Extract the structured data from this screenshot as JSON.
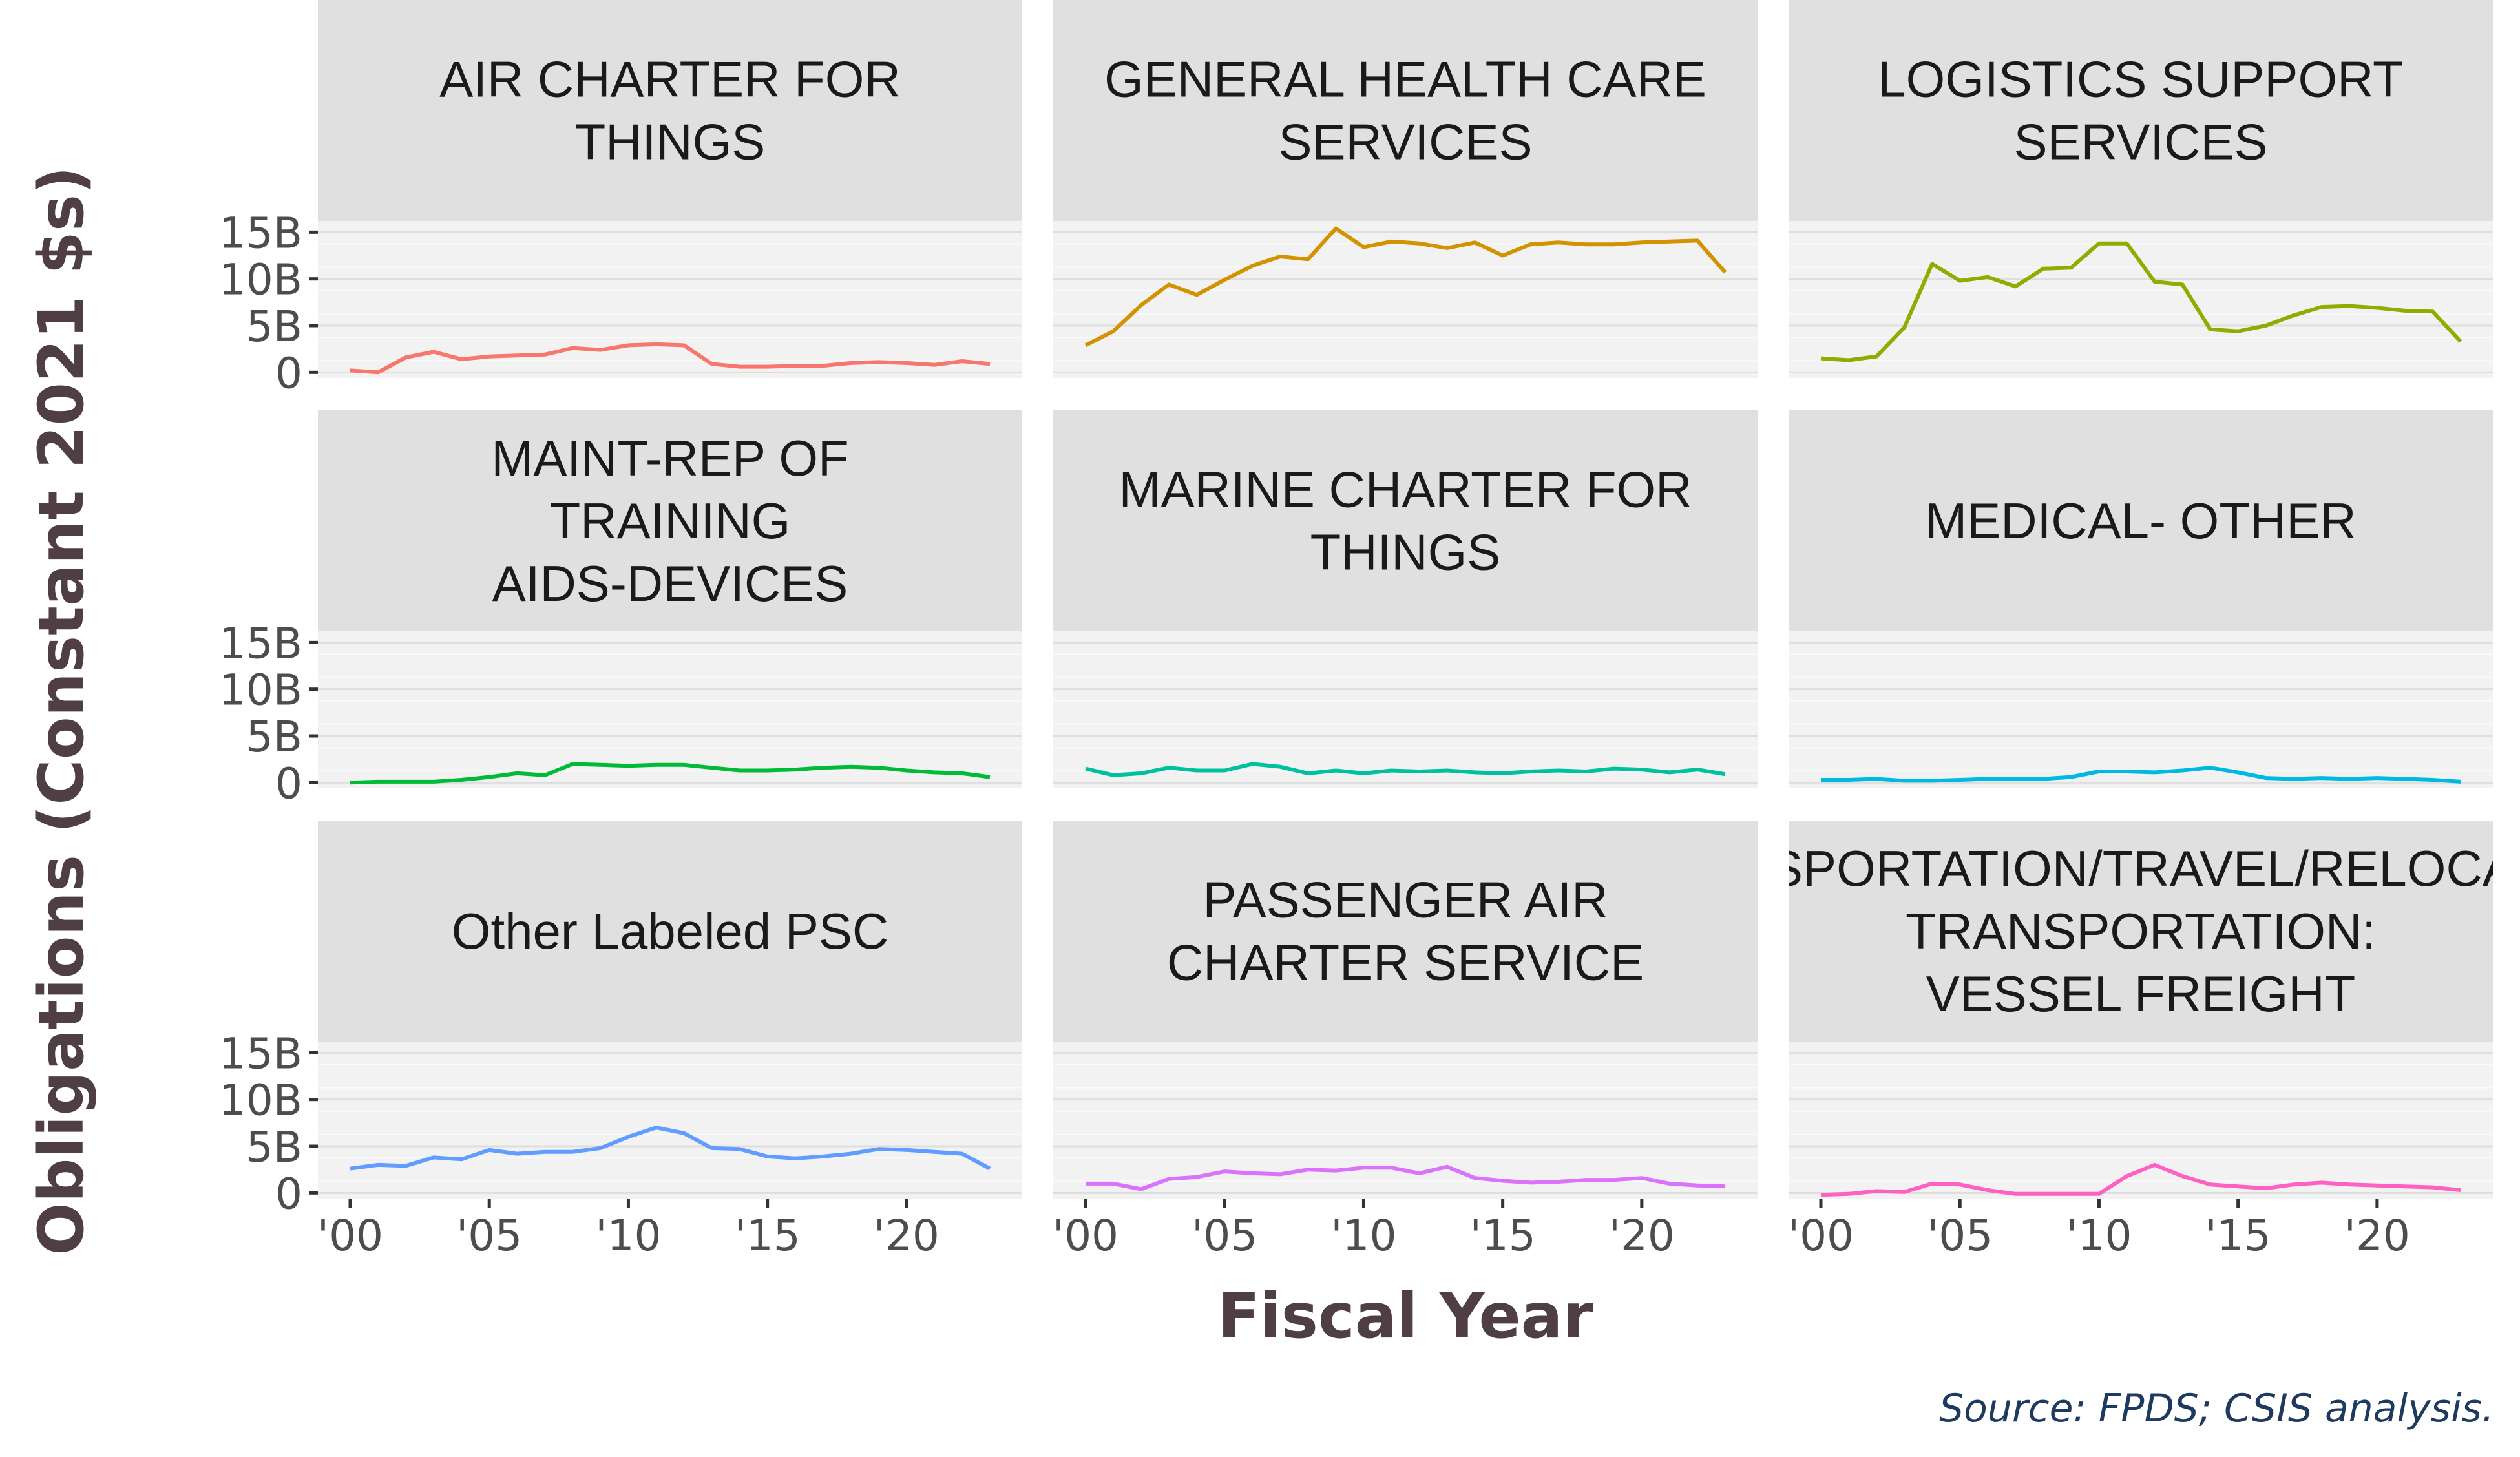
{
  "chart_data": {
    "type": "line",
    "facet_layout": "3x3 grid, shared axes",
    "ylabel": "Obligations (Constant 2021 $s)",
    "xlabel": "Fiscal Year",
    "caption": "Source: FPDS; CSIS analysis.",
    "y_ticks": [
      {
        "value": 0,
        "label": "0"
      },
      {
        "value": 5,
        "label": "5B"
      },
      {
        "value": 10,
        "label": "10B"
      },
      {
        "value": 15,
        "label": "15B"
      }
    ],
    "x_ticks": [
      {
        "value": 2000,
        "label": "'00"
      },
      {
        "value": 2005,
        "label": "'05"
      },
      {
        "value": 2010,
        "label": "'10"
      },
      {
        "value": 2015,
        "label": "'15"
      },
      {
        "value": 2020,
        "label": "'20"
      }
    ],
    "xlim": [
      2000,
      2023
    ],
    "ylim": [
      0,
      15
    ],
    "x": [
      2000,
      2001,
      2002,
      2003,
      2004,
      2005,
      2006,
      2007,
      2008,
      2009,
      2010,
      2011,
      2012,
      2013,
      2014,
      2015,
      2016,
      2017,
      2018,
      2019,
      2020,
      2021,
      2022,
      2023
    ],
    "series": [
      {
        "name": "AIR CHARTER FOR THINGS",
        "strip_lines": [
          "AIR CHARTER FOR",
          "THINGS"
        ],
        "color": "#F8766D",
        "values": [
          0.2,
          0.0,
          1.6,
          2.2,
          1.4,
          1.7,
          1.8,
          1.9,
          2.6,
          2.4,
          2.9,
          3.0,
          2.9,
          0.9,
          0.6,
          0.6,
          0.7,
          0.7,
          1.0,
          1.1,
          1.0,
          0.8,
          1.2,
          0.9
        ]
      },
      {
        "name": "GENERAL HEALTH CARE SERVICES",
        "strip_lines": [
          "GENERAL HEALTH CARE",
          "SERVICES"
        ],
        "color": "#D39200",
        "values": [
          2.9,
          4.4,
          7.2,
          9.4,
          8.3,
          9.9,
          11.4,
          12.4,
          12.1,
          15.4,
          13.4,
          14.0,
          13.8,
          13.3,
          13.9,
          12.5,
          13.7,
          13.9,
          13.7,
          13.7,
          13.9,
          14.0,
          14.1,
          10.7
        ]
      },
      {
        "name": "LOGISTICS SUPPORT SERVICES",
        "strip_lines": [
          "LOGISTICS SUPPORT",
          "SERVICES"
        ],
        "color": "#93AA00",
        "values": [
          1.5,
          1.3,
          1.7,
          4.8,
          11.6,
          9.8,
          10.2,
          9.2,
          11.1,
          11.2,
          13.8,
          13.8,
          9.7,
          9.4,
          4.6,
          4.4,
          5.0,
          6.1,
          7.0,
          7.1,
          6.9,
          6.6,
          6.5,
          3.3
        ]
      },
      {
        "name": "MAINT-REP OF TRAINING AIDS-DEVICES",
        "strip_lines": [
          "MAINT-REP OF",
          "TRAINING",
          "AIDS-DEVICES"
        ],
        "color": "#00BA38",
        "values": [
          0.0,
          0.1,
          0.1,
          0.1,
          0.3,
          0.6,
          1.0,
          0.8,
          2.0,
          1.9,
          1.8,
          1.9,
          1.9,
          1.6,
          1.3,
          1.3,
          1.4,
          1.6,
          1.7,
          1.6,
          1.3,
          1.1,
          1.0,
          0.6
        ]
      },
      {
        "name": "MARINE CHARTER FOR THINGS",
        "strip_lines": [
          "MARINE CHARTER FOR",
          "THINGS"
        ],
        "color": "#00C19F",
        "values": [
          1.5,
          0.8,
          1.0,
          1.6,
          1.3,
          1.3,
          2.0,
          1.7,
          1.0,
          1.3,
          1.0,
          1.3,
          1.2,
          1.3,
          1.1,
          1.0,
          1.2,
          1.3,
          1.2,
          1.5,
          1.4,
          1.1,
          1.4,
          0.9
        ]
      },
      {
        "name": "MEDICAL- OTHER",
        "strip_lines": [
          "MEDICAL- OTHER"
        ],
        "color": "#00B9E3",
        "values": [
          0.3,
          0.3,
          0.4,
          0.2,
          0.2,
          0.3,
          0.4,
          0.4,
          0.4,
          0.6,
          1.2,
          1.2,
          1.1,
          1.3,
          1.6,
          1.1,
          0.5,
          0.4,
          0.5,
          0.4,
          0.5,
          0.4,
          0.3,
          0.1
        ]
      },
      {
        "name": "Other Labeled PSC",
        "strip_lines": [
          "Other Labeled PSC"
        ],
        "color": "#619CFF",
        "values": [
          2.6,
          3.0,
          2.9,
          3.8,
          3.6,
          4.6,
          4.2,
          4.4,
          4.4,
          4.8,
          6.0,
          7.0,
          6.4,
          4.8,
          4.7,
          3.9,
          3.7,
          3.9,
          4.2,
          4.7,
          4.6,
          4.4,
          4.2,
          2.6
        ]
      },
      {
        "name": "PASSENGER AIR CHARTER SERVICE",
        "strip_lines": [
          "PASSENGER AIR",
          "CHARTER SERVICE"
        ],
        "color": "#DB72FB",
        "values": [
          1.0,
          1.0,
          0.4,
          1.5,
          1.7,
          2.3,
          2.1,
          2.0,
          2.5,
          2.4,
          2.7,
          2.7,
          2.1,
          2.8,
          1.6,
          1.3,
          1.1,
          1.2,
          1.4,
          1.4,
          1.6,
          1.0,
          0.8,
          0.7
        ]
      },
      {
        "name": "TRANSPORTATION/TRAVEL/RELOCATION- TRANSPORTATION: VESSEL FREIGHT",
        "strip_lines": [
          "TRANSPORTATION/TRAVEL/RELOCATION-",
          "TRANSPORTATION:",
          "VESSEL FREIGHT"
        ],
        "color": "#FF61C3",
        "values": [
          -0.2,
          -0.1,
          0.2,
          0.1,
          1.0,
          0.9,
          0.3,
          -0.1,
          -0.1,
          -0.1,
          -0.1,
          1.8,
          3.0,
          1.8,
          0.9,
          0.7,
          0.5,
          0.9,
          1.1,
          0.9,
          0.8,
          0.7,
          0.6,
          0.3
        ]
      }
    ]
  }
}
